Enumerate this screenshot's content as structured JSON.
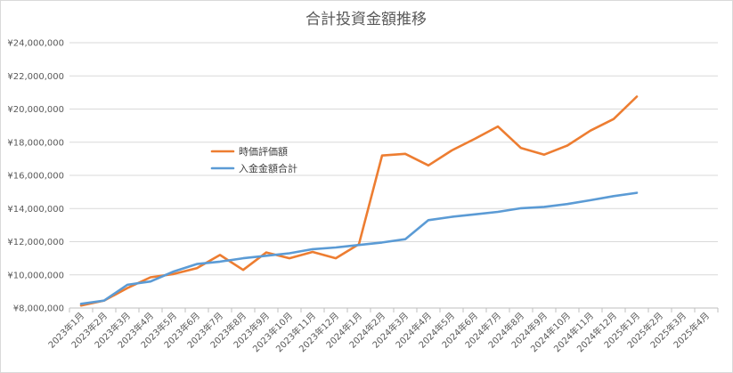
{
  "chart_data": {
    "type": "line",
    "title": "合計投資金額推移",
    "xlabel": "",
    "ylabel": "",
    "ylim": [
      8000000,
      24000000
    ],
    "yticks": [
      8000000,
      10000000,
      12000000,
      14000000,
      16000000,
      18000000,
      20000000,
      22000000,
      24000000
    ],
    "ytick_labels": [
      "¥8,000,000",
      "¥10,000,000",
      "¥12,000,000",
      "¥14,000,000",
      "¥16,000,000",
      "¥18,000,000",
      "¥20,000,000",
      "¥22,000,000",
      "¥24,000,000"
    ],
    "grid": true,
    "legend_position": "center-left",
    "categories": [
      "2023年1月",
      "2023年2月",
      "2023年3月",
      "2023年4月",
      "2023年5月",
      "2023年6月",
      "2023年7月",
      "2023年8月",
      "2023年9月",
      "2023年10月",
      "2023年11月",
      "2023年12月",
      "2024年1月",
      "2024年2月",
      "2024年3月",
      "2024年4月",
      "2024年5月",
      "2024年6月",
      "2024年7月",
      "2024年8月",
      "2024年9月",
      "2024年10月",
      "2024年11月",
      "2024年12月",
      "2025年1月",
      "2025年2月",
      "2025年3月",
      "2025年4月"
    ],
    "series": [
      {
        "name": "時価評価額",
        "color": "#ED7D31",
        "values": [
          8150000,
          8450000,
          9200000,
          9850000,
          10050000,
          10400000,
          11200000,
          10300000,
          11350000,
          11000000,
          11380000,
          11000000,
          11850000,
          17200000,
          17300000,
          16600000,
          17500000,
          18200000,
          18950000,
          17650000,
          17250000,
          17800000,
          18700000,
          19400000,
          20750000,
          null,
          null,
          null
        ]
      },
      {
        "name": "入金金額合計",
        "color": "#5B9BD5",
        "values": [
          8250000,
          8450000,
          9400000,
          9600000,
          10200000,
          10650000,
          10800000,
          11000000,
          11150000,
          11300000,
          11550000,
          11650000,
          11800000,
          11950000,
          12150000,
          13300000,
          13500000,
          13650000,
          13800000,
          14020000,
          14100000,
          14270000,
          14500000,
          14750000,
          14950000,
          null,
          null,
          null
        ]
      }
    ]
  }
}
